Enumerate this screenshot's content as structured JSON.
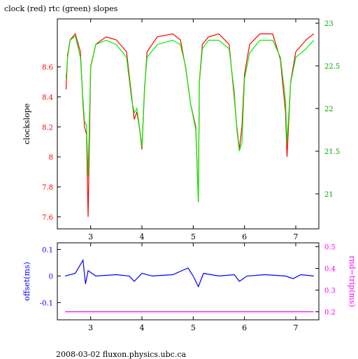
{
  "header": {
    "title": "clock (red) rtc (green) slopes"
  },
  "footer": {
    "text": "2008-03-02 fluxon.physics.ubc.ca"
  },
  "colors": {
    "clock": "#ff0000",
    "rtc": "#00ee00",
    "offset": "#0000ff",
    "rndtrip": "#ff00ff",
    "axis": "#000000"
  },
  "chart_data": [
    {
      "type": "line",
      "title": "clock (red) rtc (green) slopes",
      "ylabel": "clockslope",
      "xlim": [
        2.35,
        7.45
      ],
      "ylim": [
        7.52,
        8.92
      ],
      "x_ticks": [
        3,
        4,
        5,
        6,
        7
      ],
      "y_ticks": [
        7.6,
        7.8,
        8,
        8.2,
        8.4,
        8.6
      ],
      "y2lim": [
        20.59,
        23.05
      ],
      "y2_ticks": [
        21,
        21.5,
        22,
        22.5,
        23
      ],
      "grid": false,
      "series": [
        {
          "name": "clock",
          "axis": "left",
          "x": [
            2.52,
            2.55,
            2.6,
            2.7,
            2.8,
            2.85,
            2.88,
            2.92,
            2.95,
            3.0,
            3.1,
            3.3,
            3.5,
            3.7,
            3.8,
            3.85,
            3.9,
            3.95,
            4.0,
            4.05,
            4.1,
            4.3,
            4.6,
            4.75,
            4.85,
            4.95,
            5.05,
            5.1,
            5.12,
            5.18,
            5.3,
            5.5,
            5.7,
            5.8,
            5.85,
            5.9,
            5.95,
            6.0,
            6.1,
            6.3,
            6.55,
            6.7,
            6.8,
            6.83,
            6.9,
            7.0,
            7.2,
            7.35
          ],
          "values": [
            8.45,
            8.68,
            8.78,
            8.82,
            8.7,
            8.35,
            8.2,
            8.15,
            7.6,
            8.6,
            8.75,
            8.8,
            8.78,
            8.7,
            8.4,
            8.25,
            8.3,
            8.2,
            8.05,
            8.45,
            8.7,
            8.8,
            8.82,
            8.78,
            8.6,
            8.35,
            8.2,
            7.7,
            8.5,
            8.75,
            8.8,
            8.82,
            8.75,
            8.4,
            8.2,
            8.05,
            8.2,
            8.55,
            8.75,
            8.82,
            8.82,
            8.65,
            8.3,
            8.0,
            8.5,
            8.7,
            8.78,
            8.82
          ]
        },
        {
          "name": "rtc",
          "axis": "right",
          "x": [
            2.52,
            2.55,
            2.6,
            2.7,
            2.8,
            2.85,
            2.88,
            2.92,
            2.95,
            3.0,
            3.1,
            3.3,
            3.5,
            3.7,
            3.8,
            3.85,
            3.9,
            3.95,
            4.0,
            4.05,
            4.1,
            4.3,
            4.6,
            4.75,
            4.85,
            4.95,
            5.05,
            5.1,
            5.12,
            5.18,
            5.3,
            5.5,
            5.7,
            5.8,
            5.85,
            5.9,
            5.95,
            6.0,
            6.1,
            6.3,
            6.55,
            6.7,
            6.8,
            6.83,
            6.9,
            7.0,
            7.2,
            7.35
          ],
          "values": [
            22.35,
            22.6,
            22.8,
            22.85,
            22.6,
            22.1,
            21.85,
            21.8,
            21.2,
            22.5,
            22.75,
            22.8,
            22.75,
            22.6,
            22.1,
            21.95,
            22.0,
            21.8,
            21.55,
            22.25,
            22.6,
            22.75,
            22.8,
            22.75,
            22.5,
            22.05,
            21.75,
            20.9,
            22.3,
            22.7,
            22.8,
            22.8,
            22.7,
            22.2,
            21.75,
            21.5,
            21.6,
            22.35,
            22.65,
            22.8,
            22.8,
            22.6,
            22.1,
            21.6,
            22.3,
            22.6,
            22.7,
            22.8
          ]
        }
      ]
    },
    {
      "type": "line",
      "ylabel": "offset(ms)",
      "y2label": "rnd−trip(ms)",
      "xlim": [
        2.35,
        7.45
      ],
      "ylim": [
        -0.165,
        0.125
      ],
      "x_ticks": [
        3,
        4,
        5,
        6,
        7
      ],
      "y_ticks": [
        -0.1,
        0,
        0.1
      ],
      "y2lim": [
        0.163,
        0.518
      ],
      "y2_ticks": [
        0.2,
        0.3,
        0.4,
        0.5
      ],
      "grid": false,
      "series": [
        {
          "name": "offset",
          "axis": "left",
          "x": [
            2.5,
            2.7,
            2.85,
            2.9,
            2.95,
            3.1,
            3.5,
            3.75,
            3.85,
            4.0,
            4.2,
            4.6,
            4.9,
            5.0,
            5.1,
            5.2,
            5.5,
            5.8,
            5.9,
            6.05,
            6.4,
            6.8,
            6.95,
            7.1,
            7.35
          ],
          "values": [
            0.0,
            0.01,
            0.06,
            -0.03,
            0.02,
            0.0,
            0.005,
            0.0,
            -0.02,
            0.01,
            0.0,
            0.005,
            0.03,
            0.0,
            -0.04,
            0.01,
            0.0,
            0.005,
            -0.02,
            0.0,
            0.005,
            0.0,
            -0.01,
            0.005,
            0.0
          ]
        },
        {
          "name": "rnd-trip",
          "axis": "right",
          "x": [
            2.5,
            2.9,
            3.3,
            3.7,
            4.1,
            4.5,
            4.9,
            5.3,
            5.7,
            6.1,
            6.5,
            6.9,
            7.35
          ],
          "values": [
            0.2,
            0.2,
            0.2,
            0.2,
            0.2,
            0.2,
            0.2,
            0.2,
            0.2,
            0.2,
            0.2,
            0.2,
            0.2
          ]
        }
      ]
    }
  ]
}
